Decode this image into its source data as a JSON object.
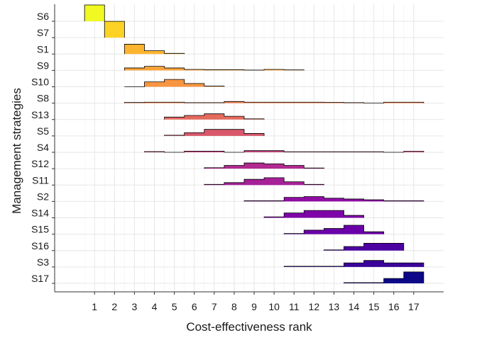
{
  "chart_data": {
    "type": "histogram-ridgeline",
    "xlabel": "Cost-effectiveness rank",
    "ylabel": "Management strategies",
    "x_ticks": [
      1,
      2,
      3,
      4,
      5,
      6,
      7,
      8,
      9,
      10,
      11,
      12,
      13,
      14,
      15,
      16,
      17
    ],
    "xlim": [
      -1,
      18.5
    ],
    "grid": true,
    "legend": "none",
    "colormap": "plasma",
    "series": [
      {
        "name": "S6",
        "color": "#f0f921",
        "bins": [
          {
            "rank": 1,
            "v": 1.0
          }
        ]
      },
      {
        "name": "S7",
        "color": "#fcd225",
        "bins": [
          {
            "rank": 2,
            "v": 1.0
          }
        ]
      },
      {
        "name": "S1",
        "color": "#fdb42f",
        "bins": [
          {
            "rank": 3,
            "v": 0.6
          },
          {
            "rank": 4,
            "v": 0.2
          },
          {
            "rank": 5,
            "v": 0.04
          }
        ]
      },
      {
        "name": "S9",
        "color": "#fba238",
        "bins": [
          {
            "rank": 3,
            "v": 0.15
          },
          {
            "rank": 4,
            "v": 0.25
          },
          {
            "rank": 5,
            "v": 0.15
          },
          {
            "rank": 6,
            "v": 0.06
          },
          {
            "rank": 7,
            "v": 0.04
          },
          {
            "rank": 8,
            "v": 0.04
          },
          {
            "rank": 9,
            "v": 0.02
          },
          {
            "rank": 10,
            "v": 0.06
          },
          {
            "rank": 11,
            "v": 0.03
          }
        ]
      },
      {
        "name": "S10",
        "color": "#f89540",
        "bins": [
          {
            "rank": 3,
            "v": 0.0
          },
          {
            "rank": 4,
            "v": 0.3
          },
          {
            "rank": 5,
            "v": 0.45
          },
          {
            "rank": 6,
            "v": 0.2
          },
          {
            "rank": 7,
            "v": 0.04
          }
        ]
      },
      {
        "name": "S8",
        "color": "#f07f4f",
        "bins": [
          {
            "rank": 3,
            "v": 0.04
          },
          {
            "rank": 4,
            "v": 0.06
          },
          {
            "rank": 5,
            "v": 0.06
          },
          {
            "rank": 6,
            "v": 0.03
          },
          {
            "rank": 7,
            "v": 0.03
          },
          {
            "rank": 8,
            "v": 0.1
          },
          {
            "rank": 9,
            "v": 0.06
          },
          {
            "rank": 10,
            "v": 0.06
          },
          {
            "rank": 11,
            "v": 0.06
          },
          {
            "rank": 12,
            "v": 0.06
          },
          {
            "rank": 13,
            "v": 0.05
          },
          {
            "rank": 14,
            "v": 0.03
          },
          {
            "rank": 15,
            "v": 0.0
          },
          {
            "rank": 16,
            "v": 0.06
          },
          {
            "rank": 17,
            "v": 0.06
          }
        ]
      },
      {
        "name": "S13",
        "color": "#e56b5d",
        "bins": [
          {
            "rank": 5,
            "v": 0.15
          },
          {
            "rank": 6,
            "v": 0.25
          },
          {
            "rank": 7,
            "v": 0.35
          },
          {
            "rank": 8,
            "v": 0.2
          },
          {
            "rank": 9,
            "v": 0.04
          }
        ]
      },
      {
        "name": "S5",
        "color": "#d8576b",
        "bins": [
          {
            "rank": 5,
            "v": 0.04
          },
          {
            "rank": 6,
            "v": 0.2
          },
          {
            "rank": 7,
            "v": 0.4
          },
          {
            "rank": 8,
            "v": 0.4
          },
          {
            "rank": 9,
            "v": 0.15
          }
        ]
      },
      {
        "name": "S4",
        "color": "#c5407e",
        "bins": [
          {
            "rank": 4,
            "v": 0.04
          },
          {
            "rank": 5,
            "v": 0.0
          },
          {
            "rank": 6,
            "v": 0.07
          },
          {
            "rank": 7,
            "v": 0.07
          },
          {
            "rank": 8,
            "v": 0.0
          },
          {
            "rank": 9,
            "v": 0.1
          },
          {
            "rank": 10,
            "v": 0.1
          },
          {
            "rank": 11,
            "v": 0.03
          },
          {
            "rank": 12,
            "v": 0.03
          },
          {
            "rank": 13,
            "v": 0.03
          },
          {
            "rank": 14,
            "v": 0.03
          },
          {
            "rank": 15,
            "v": 0.03
          },
          {
            "rank": 16,
            "v": 0.0
          },
          {
            "rank": 17,
            "v": 0.06
          }
        ]
      },
      {
        "name": "S12",
        "color": "#b12a90",
        "bins": [
          {
            "rank": 7,
            "v": 0.06
          },
          {
            "rank": 8,
            "v": 0.2
          },
          {
            "rank": 9,
            "v": 0.35
          },
          {
            "rank": 10,
            "v": 0.3
          },
          {
            "rank": 11,
            "v": 0.2
          },
          {
            "rank": 12,
            "v": 0.04
          }
        ]
      },
      {
        "name": "S11",
        "color": "#a62098",
        "bins": [
          {
            "rank": 7,
            "v": 0.04
          },
          {
            "rank": 8,
            "v": 0.15
          },
          {
            "rank": 9,
            "v": 0.35
          },
          {
            "rank": 10,
            "v": 0.45
          },
          {
            "rank": 11,
            "v": 0.2
          },
          {
            "rank": 12,
            "v": 0.04
          }
        ]
      },
      {
        "name": "S2",
        "color": "#8f0da4",
        "bins": [
          {
            "rank": 9,
            "v": 0.04
          },
          {
            "rank": 10,
            "v": 0.04
          },
          {
            "rank": 11,
            "v": 0.25
          },
          {
            "rank": 12,
            "v": 0.3
          },
          {
            "rank": 13,
            "v": 0.2
          },
          {
            "rank": 14,
            "v": 0.15
          },
          {
            "rank": 15,
            "v": 0.1
          },
          {
            "rank": 16,
            "v": 0.04
          },
          {
            "rank": 17,
            "v": 0.04
          }
        ]
      },
      {
        "name": "S14",
        "color": "#7e03a8",
        "bins": [
          {
            "rank": 10,
            "v": 0.06
          },
          {
            "rank": 11,
            "v": 0.3
          },
          {
            "rank": 12,
            "v": 0.45
          },
          {
            "rank": 13,
            "v": 0.45
          },
          {
            "rank": 14,
            "v": 0.15
          }
        ]
      },
      {
        "name": "S15",
        "color": "#6a00a8",
        "bins": [
          {
            "rank": 11,
            "v": 0.04
          },
          {
            "rank": 12,
            "v": 0.25
          },
          {
            "rank": 13,
            "v": 0.35
          },
          {
            "rank": 14,
            "v": 0.55
          },
          {
            "rank": 15,
            "v": 0.15
          }
        ]
      },
      {
        "name": "S16",
        "color": "#4c02a1",
        "bins": [
          {
            "rank": 13,
            "v": 0.04
          },
          {
            "rank": 14,
            "v": 0.25
          },
          {
            "rank": 15,
            "v": 0.45
          },
          {
            "rank": 16,
            "v": 0.45
          }
        ]
      },
      {
        "name": "S3",
        "color": "#3a049a",
        "bins": [
          {
            "rank": 11,
            "v": 0.04
          },
          {
            "rank": 12,
            "v": 0.04
          },
          {
            "rank": 13,
            "v": 0.04
          },
          {
            "rank": 14,
            "v": 0.25
          },
          {
            "rank": 15,
            "v": 0.4
          },
          {
            "rank": 16,
            "v": 0.25
          },
          {
            "rank": 17,
            "v": 0.25
          }
        ]
      },
      {
        "name": "S17",
        "color": "#0d0887",
        "bins": [
          {
            "rank": 14,
            "v": 0.04
          },
          {
            "rank": 15,
            "v": 0.04
          },
          {
            "rank": 16,
            "v": 0.3
          },
          {
            "rank": 17,
            "v": 0.7
          }
        ]
      }
    ]
  }
}
